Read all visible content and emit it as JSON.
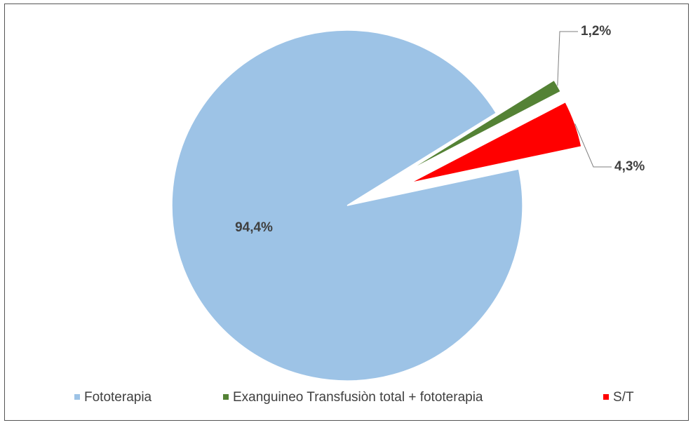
{
  "chart_data": {
    "type": "pie",
    "categories": [
      "Fototerapia",
      "Exanguineo Transfusiòn total + fototerapia",
      "S/T"
    ],
    "values": [
      94.4,
      1.2,
      4.3
    ],
    "value_labels": [
      "94,4%",
      "1,2%",
      "4,3%"
    ],
    "colors": [
      "#9dc3e6",
      "#548235",
      "#ff0000"
    ],
    "legend": "bottom"
  }
}
